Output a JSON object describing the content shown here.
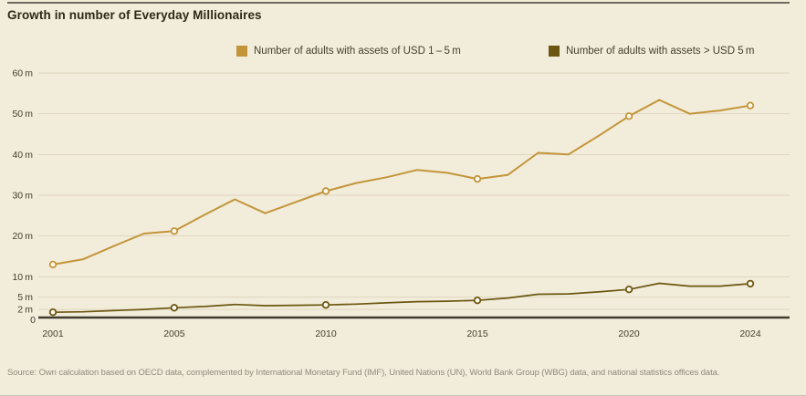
{
  "title": "Growth in number of Everyday Millionaires",
  "legend": [
    {
      "label": "Number of adults with assets of USD 1 – 5 m",
      "color": "#c3953a"
    },
    {
      "label": "Number of adults with assets > USD 5 m",
      "color": "#6b5712"
    }
  ],
  "source": "Source: Own calculation based on OECD data, complemented by International Monetary Fund (IMF), United Nations (UN), World Bank Group (WBG) data, and national statistics offices data.",
  "colors": {
    "background": "#f2ecda",
    "gridline": "#ddd5c0",
    "zero_axis": "#3e3a2d",
    "marker_fill": "#fcf9ee",
    "tick_text": "#44402f"
  },
  "chart_data": {
    "type": "line",
    "title": "Growth in number of Everyday Millionaires",
    "xlabel": "",
    "ylabel": "",
    "unit": "millions of adults",
    "ylim": [
      0,
      60
    ],
    "grid": true,
    "legend_position": "top",
    "x": [
      2001,
      2002,
      2003,
      2004,
      2005,
      2006,
      2007,
      2008,
      2009,
      2010,
      2011,
      2012,
      2013,
      2014,
      2015,
      2016,
      2017,
      2018,
      2019,
      2020,
      2021,
      2022,
      2023,
      2024
    ],
    "xticks": [
      2001,
      2005,
      2010,
      2015,
      2020,
      2024
    ],
    "yticks": [
      {
        "v": 0,
        "label": "0"
      },
      {
        "v": 2,
        "label": "2 m"
      },
      {
        "v": 5,
        "label": "5 m"
      },
      {
        "v": 10,
        "label": "10 m"
      },
      {
        "v": 20,
        "label": "20 m"
      },
      {
        "v": 30,
        "label": "30 m"
      },
      {
        "v": 40,
        "label": "40 m"
      },
      {
        "v": 50,
        "label": "50 m"
      },
      {
        "v": 60,
        "label": "60 m"
      }
    ],
    "marker_years": [
      2001,
      2005,
      2010,
      2015,
      2020,
      2024
    ],
    "series": [
      {
        "name": "Number of adults with assets of USD 1 – 5 m",
        "key": "usd-1-5m",
        "color": "#c3953a",
        "line_width": 2,
        "values": [
          13,
          14.3,
          17.5,
          20.6,
          21.2,
          25.2,
          29,
          25.6,
          28.3,
          31,
          33,
          34.4,
          36.2,
          35.5,
          34,
          35,
          40.4,
          40,
          44.6,
          49.4,
          53.4,
          50,
          50.8,
          52
        ]
      },
      {
        "name": "Number of adults with assets > USD 5 m",
        "key": "usd-over-5m",
        "color": "#6b5712",
        "line_width": 1.7,
        "values": [
          1.3,
          1.4,
          1.7,
          2.0,
          2.4,
          2.7,
          3.2,
          2.9,
          3.0,
          3.1,
          3.3,
          3.6,
          3.9,
          4.0,
          4.2,
          4.8,
          5.7,
          5.8,
          6.3,
          6.9,
          8.4,
          7.7,
          7.7,
          8.3
        ]
      }
    ]
  }
}
